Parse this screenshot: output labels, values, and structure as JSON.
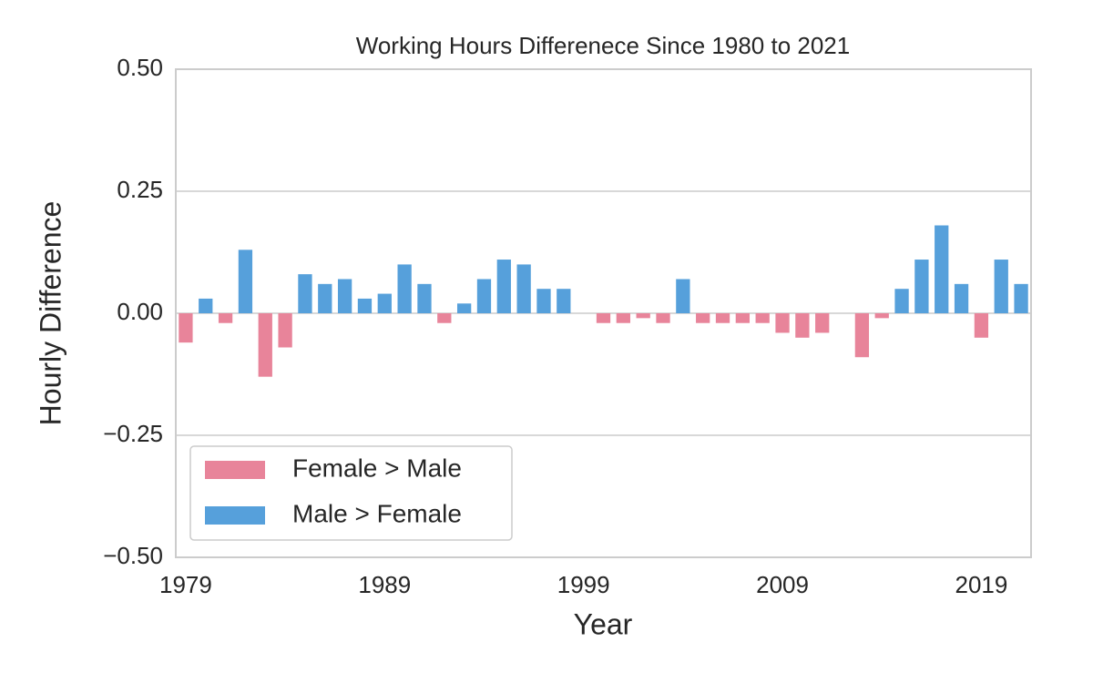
{
  "chart_data": {
    "type": "bar",
    "title": "Working Hours Differenece Since 1980 to 2021",
    "x_label": "Year",
    "y_label": "Hourly Difference",
    "x": [
      1979,
      1980,
      1981,
      1982,
      1983,
      1984,
      1985,
      1986,
      1987,
      1988,
      1989,
      1990,
      1991,
      1992,
      1993,
      1994,
      1995,
      1996,
      1997,
      1998,
      1999,
      2000,
      2001,
      2002,
      2003,
      2004,
      2005,
      2006,
      2007,
      2008,
      2009,
      2010,
      2011,
      2012,
      2013,
      2014,
      2015,
      2016,
      2017,
      2018,
      2019,
      2020,
      2021
    ],
    "series": [
      {
        "name": "Female > Male",
        "color": "#e8849a",
        "values": [
          -0.06,
          null,
          -0.02,
          null,
          -0.13,
          -0.07,
          null,
          null,
          null,
          null,
          null,
          null,
          null,
          -0.02,
          null,
          null,
          null,
          null,
          null,
          null,
          0,
          -0.02,
          -0.02,
          -0.01,
          -0.02,
          null,
          -0.02,
          -0.02,
          -0.02,
          -0.02,
          -0.04,
          -0.05,
          -0.04,
          0,
          -0.09,
          -0.01,
          null,
          null,
          null,
          null,
          -0.05,
          null,
          null
        ]
      },
      {
        "name": "Male > Female",
        "color": "#56a0db",
        "values": [
          null,
          0.03,
          null,
          0.13,
          null,
          null,
          0.08,
          0.06,
          0.07,
          0.03,
          0.04,
          0.1,
          0.06,
          null,
          0.02,
          0.07,
          0.11,
          0.1,
          0.05,
          0.05,
          null,
          null,
          null,
          null,
          null,
          0.07,
          null,
          null,
          null,
          null,
          null,
          null,
          null,
          null,
          null,
          null,
          0.05,
          0.11,
          0.18,
          0.06,
          null,
          0.11,
          0.06
        ]
      }
    ],
    "xlim": [
      1978.5,
      2021.5
    ],
    "xticks": [
      1979,
      1989,
      1999,
      2009,
      2019
    ],
    "ylim": [
      -0.5,
      0.5
    ],
    "yticks": [
      {
        "value": -0.5,
        "label": "−0.50"
      },
      {
        "value": -0.25,
        "label": "−0.25"
      },
      {
        "value": 0,
        "label": "0.00"
      },
      {
        "value": 0.25,
        "label": "0.25"
      },
      {
        "value": 0.5,
        "label": "0.50"
      }
    ],
    "grid": true,
    "legend": "lower left"
  }
}
